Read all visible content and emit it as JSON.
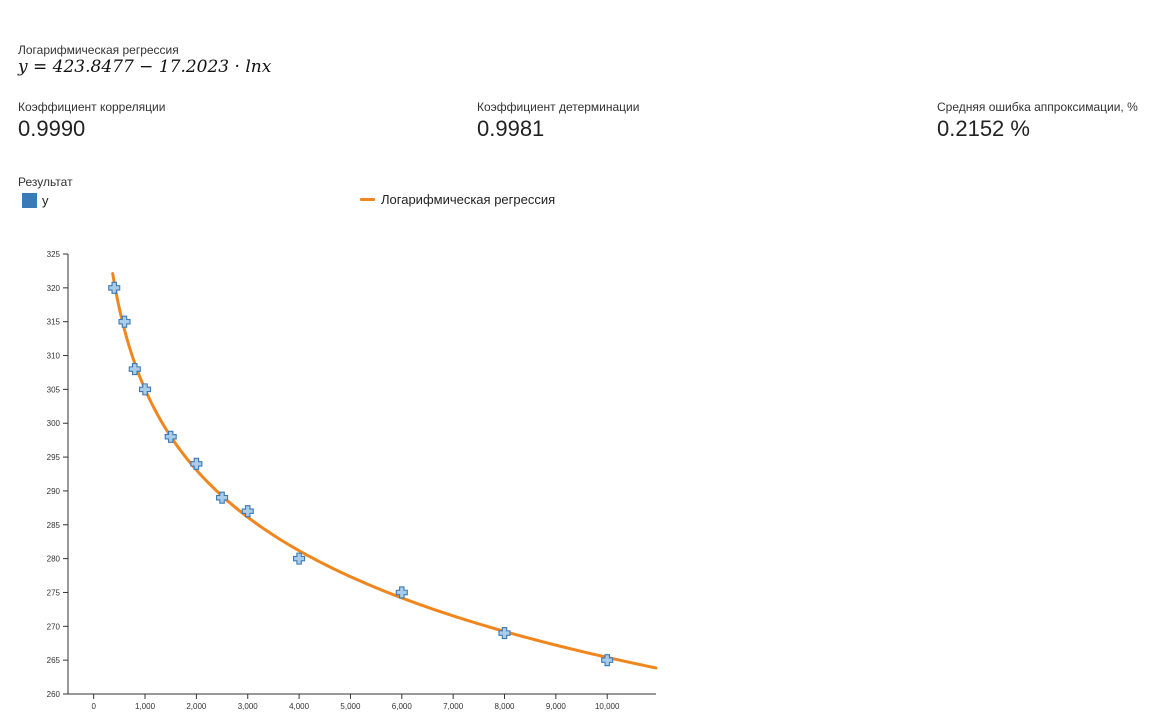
{
  "header": {
    "regression_title": "Логарифмическая регрессия",
    "formula": "y = 423.8477 − 17.2023 · lnx"
  },
  "metrics": [
    {
      "label": "Коэффициент корреляции",
      "value": "0.9990"
    },
    {
      "label": "Коэффициент детерминации",
      "value": "0.9981"
    },
    {
      "label": "Средняя ошибка аппроксимации, %",
      "value": "0.2152 %"
    }
  ],
  "result_label": "Результат",
  "legend": {
    "points_label": "y",
    "curve_label": "Логарифмическая регрессия"
  },
  "colors": {
    "curve": "#f0861e",
    "points_fill": "#a9cce8",
    "points_stroke": "#3a7ab7"
  },
  "chart_data": {
    "type": "scatter",
    "title": "",
    "xlabel": "",
    "ylabel": "",
    "xlim": [
      -500,
      10950
    ],
    "ylim": [
      260,
      325
    ],
    "x_ticks": [
      0,
      1000,
      2000,
      3000,
      4000,
      5000,
      6000,
      7000,
      8000,
      9000,
      10000
    ],
    "x_tick_labels": [
      "0",
      "1,000",
      "2,000",
      "3,000",
      "4,000",
      "5,000",
      "6,000",
      "7,000",
      "8,000",
      "9,000",
      "10,000"
    ],
    "y_ticks": [
      260,
      265,
      270,
      275,
      280,
      285,
      290,
      295,
      300,
      305,
      310,
      315,
      320,
      325
    ],
    "y_tick_labels": [
      "260",
      "265",
      "270",
      "275",
      "280",
      "285",
      "290",
      "295",
      "300",
      "305",
      "310",
      "315",
      "320",
      "325"
    ],
    "grid": false,
    "legend_position": "top",
    "series": [
      {
        "name": "y",
        "type": "scatter",
        "x": [
          400,
          600,
          800,
          1000,
          1500,
          2000,
          2500,
          3000,
          4000,
          6000,
          8000,
          10000
        ],
        "y": [
          320,
          315,
          308,
          305,
          298,
          294,
          289,
          287,
          280,
          275,
          269,
          265
        ]
      },
      {
        "name": "Логарифмическая регрессия",
        "type": "line",
        "function": "log",
        "a": 423.8477,
        "b": -17.2023
      }
    ]
  }
}
